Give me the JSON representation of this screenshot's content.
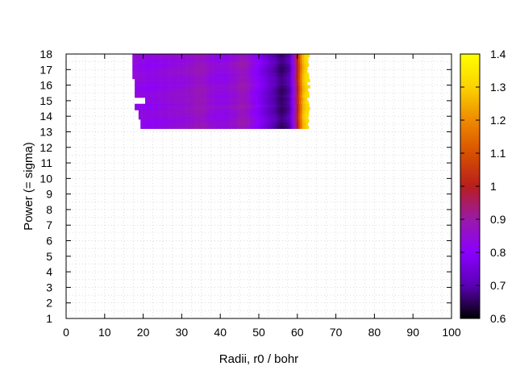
{
  "chart_data": {
    "type": "heatmap",
    "title": "",
    "xlabel": "Radii, r0 / bohr",
    "ylabel": "Power (= sigma)",
    "xlim": [
      0,
      100
    ],
    "ylim": [
      1,
      18
    ],
    "x_ticks": [
      "0",
      "10",
      "20",
      "30",
      "40",
      "50",
      "60",
      "70",
      "80",
      "90",
      "100"
    ],
    "y_ticks": [
      "1",
      "2",
      "3",
      "4",
      "5",
      "6",
      "7",
      "8",
      "9",
      "10",
      "11",
      "12",
      "13",
      "14",
      "15",
      "16",
      "17",
      "18"
    ],
    "grid": true,
    "colorbar": {
      "range": [
        0.6,
        1.4
      ],
      "ticks": [
        "0.6",
        "0.7",
        "0.8",
        "0.9",
        "1",
        "1.1",
        "1.2",
        "1.3",
        "1.4"
      ],
      "palette": "black-purple-red-orange-yellow",
      "colors": [
        "#000000",
        "#5a00b4",
        "#8a00ff",
        "#9a1aa8",
        "#b81e1e",
        "#d85000",
        "#ee8a00",
        "#fbd300",
        "#ffff00"
      ]
    },
    "data_region": {
      "y_range": [
        13.2,
        18
      ],
      "x_range_approx": [
        17,
        63
      ],
      "left_edge_by_power": [
        {
          "power": 18,
          "x": 17.5
        },
        {
          "power": 16.5,
          "x": 17.2
        },
        {
          "power": 15.2,
          "x": 17.8
        },
        {
          "power": 14.8,
          "x": 20.5
        },
        {
          "power": 14.4,
          "x": 17.8
        },
        {
          "power": 13.8,
          "x": 18.8
        },
        {
          "power": 13.4,
          "x": 19.3
        }
      ],
      "value_profile_by_radius": [
        {
          "r": 17,
          "v": 0.84
        },
        {
          "r": 22,
          "v": 0.82
        },
        {
          "r": 27,
          "v": 0.84
        },
        {
          "r": 31,
          "v": 0.85
        },
        {
          "r": 35,
          "v": 0.88
        },
        {
          "r": 38,
          "v": 0.84
        },
        {
          "r": 41,
          "v": 0.83
        },
        {
          "r": 44,
          "v": 0.86
        },
        {
          "r": 46,
          "v": 0.89
        },
        {
          "r": 48,
          "v": 0.84
        },
        {
          "r": 51,
          "v": 0.77
        },
        {
          "r": 54,
          "v": 0.7
        },
        {
          "r": 56,
          "v": 0.66
        },
        {
          "r": 58,
          "v": 0.7
        },
        {
          "r": 59.5,
          "v": 0.9
        },
        {
          "r": 60.5,
          "v": 1.1
        },
        {
          "r": 61.5,
          "v": 1.26
        },
        {
          "r": 62.5,
          "v": 1.32
        }
      ]
    }
  }
}
